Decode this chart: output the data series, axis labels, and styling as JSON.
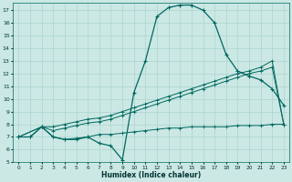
{
  "xlabel": "Humidex (Indice chaleur)",
  "bg_color": "#cce8e4",
  "grid_color": "#aad4ce",
  "line_color": "#006860",
  "xlim": [
    -0.5,
    23.5
  ],
  "ylim": [
    5,
    17.6
  ],
  "xticks": [
    0,
    1,
    2,
    3,
    4,
    5,
    6,
    7,
    8,
    9,
    10,
    11,
    12,
    13,
    14,
    15,
    16,
    17,
    18,
    19,
    20,
    21,
    22,
    23
  ],
  "yticks": [
    5,
    6,
    7,
    8,
    9,
    10,
    11,
    12,
    13,
    14,
    15,
    16,
    17
  ],
  "curve_x": [
    0,
    1,
    2,
    3,
    4,
    5,
    6,
    7,
    8,
    9,
    10,
    11,
    12,
    13,
    14,
    15,
    16,
    17,
    18,
    19,
    20,
    21,
    22,
    23
  ],
  "curve_y": [
    7.0,
    7.0,
    7.8,
    7.0,
    6.8,
    6.8,
    7.0,
    6.5,
    6.3,
    5.2,
    10.5,
    13.0,
    16.5,
    17.2,
    17.4,
    17.4,
    17.0,
    16.0,
    13.5,
    12.2,
    11.8,
    11.5,
    10.8,
    9.5
  ],
  "flat_x": [
    0,
    1,
    2,
    3,
    4,
    5,
    6,
    7,
    8,
    9,
    10,
    11,
    12,
    13,
    14,
    15,
    16,
    17,
    18,
    19,
    20,
    21,
    22,
    23
  ],
  "flat_y": [
    7.0,
    7.0,
    7.8,
    7.0,
    6.8,
    6.9,
    7.0,
    7.2,
    7.2,
    7.3,
    7.4,
    7.5,
    7.6,
    7.7,
    7.7,
    7.8,
    7.8,
    7.8,
    7.8,
    7.9,
    7.9,
    7.9,
    8.0,
    8.0
  ],
  "diag1_x": [
    0,
    2,
    3,
    4,
    5,
    6,
    7,
    8,
    9,
    10,
    11,
    12,
    13,
    14,
    15,
    16,
    17,
    18,
    19,
    20,
    21,
    22,
    23
  ],
  "diag1_y": [
    7.0,
    7.8,
    7.8,
    8.0,
    8.2,
    8.4,
    8.5,
    8.7,
    9.0,
    9.3,
    9.6,
    9.9,
    10.2,
    10.5,
    10.8,
    11.1,
    11.4,
    11.7,
    12.0,
    12.2,
    12.5,
    13.0,
    8.0
  ],
  "diag2_x": [
    0,
    2,
    3,
    4,
    5,
    6,
    7,
    8,
    9,
    10,
    11,
    12,
    13,
    14,
    15,
    16,
    17,
    18,
    19,
    20,
    21,
    22,
    23
  ],
  "diag2_y": [
    7.0,
    7.8,
    7.5,
    7.7,
    7.9,
    8.1,
    8.2,
    8.4,
    8.7,
    9.0,
    9.3,
    9.6,
    9.9,
    10.2,
    10.5,
    10.8,
    11.1,
    11.4,
    11.7,
    12.0,
    12.2,
    12.5,
    8.0
  ]
}
